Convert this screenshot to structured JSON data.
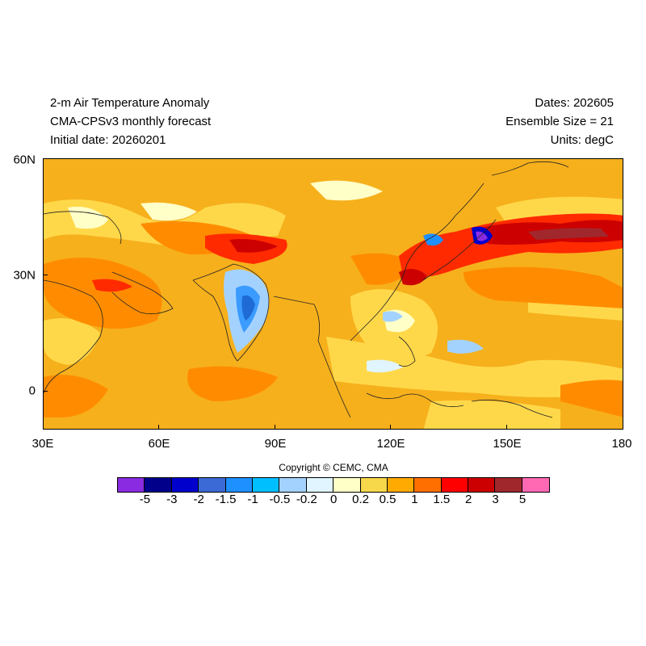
{
  "header": {
    "left": [
      "2-m Air Temperature Anomaly",
      "CMA-CPSv3 monthly forecast",
      "Initial date: 20260201"
    ],
    "right": [
      "Dates: 202605",
      "Ensemble Size = 21",
      "Units: degC"
    ]
  },
  "map": {
    "lon_ticks": [
      "30E",
      "60E",
      "90E",
      "120E",
      "150E",
      "180"
    ],
    "lat_ticks": [
      "60N",
      "30N",
      "0"
    ],
    "lon_range": [
      30,
      180
    ],
    "lat_range": [
      -10,
      60
    ],
    "background_color": "#f6b01c"
  },
  "copyright": "Copyright © CEMC, CMA",
  "colorbar": {
    "colors": [
      "#8a2be2",
      "#00008b",
      "#0000cd",
      "#3b6ad6",
      "#1e90ff",
      "#00bfff",
      "#a4d2ff",
      "#e0f5ff",
      "#ffffc8",
      "#f7d84a",
      "#ffaa00",
      "#ff6f00",
      "#ff0000",
      "#cc0000",
      "#a0282d",
      "#ff69b4"
    ],
    "labels": [
      "-5",
      "-3",
      "-2",
      "-1.5",
      "-1",
      "-0.5",
      "-0.2",
      "0",
      "0.2",
      "0.5",
      "1",
      "1.5",
      "2",
      "3",
      "5"
    ]
  }
}
